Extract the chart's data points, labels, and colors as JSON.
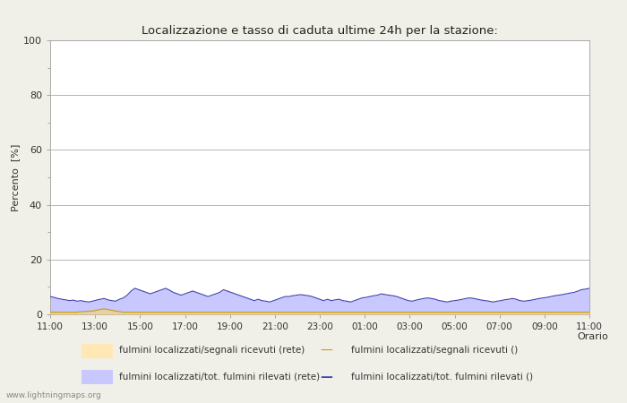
{
  "title": "Localizzazione e tasso di caduta ultime 24h per la stazione:",
  "ylabel": "Percento  [%]",
  "ylim": [
    0,
    100
  ],
  "yticks": [
    0,
    20,
    40,
    60,
    80,
    100
  ],
  "yticks_minor": [
    10,
    30,
    50,
    70,
    90
  ],
  "x_labels": [
    "11:00",
    "13:00",
    "15:00",
    "17:00",
    "19:00",
    "21:00",
    "23:00",
    "01:00",
    "03:00",
    "05:00",
    "07:00",
    "09:00",
    "11:00"
  ],
  "background_color": "#f0f0e8",
  "plot_bg_color": "#ffffff",
  "grid_color": "#aaaaaa",
  "fill_blue_color": "#c8c8ff",
  "fill_yellow_color": "#e8d0a0",
  "line_blue_color": "#4040b0",
  "line_yellow_color": "#c8a000",
  "watermark": "www.lightningmaps.org",
  "legend_row1_left_label": "fulmini localizzati/segnali ricevuti (rete)",
  "legend_row1_left_color": "#ffe8b4",
  "legend_row1_right_label": "fulmini localizzati/segnali ricevuti ()",
  "legend_row1_right_color": "#c8a000",
  "legend_row2_left_label": "fulmini localizzati/tot. fulmini rilevati (rete)",
  "legend_row2_left_color": "#c8c8ff",
  "legend_row2_right_label": "fulmini localizzati/tot. fulmini rilevati ()",
  "legend_row2_right_color": "#4040b0",
  "blue_fill_data": [
    6.5,
    6.2,
    5.8,
    5.5,
    5.3,
    5.0,
    5.2,
    4.8,
    5.0,
    4.7,
    4.5,
    4.8,
    5.2,
    5.5,
    5.8,
    5.3,
    5.0,
    4.8,
    5.5,
    6.0,
    7.0,
    8.5,
    9.5,
    9.0,
    8.5,
    8.0,
    7.5,
    8.0,
    8.5,
    9.0,
    9.5,
    8.8,
    8.0,
    7.5,
    7.0,
    7.5,
    8.0,
    8.5,
    8.0,
    7.5,
    7.0,
    6.5,
    7.0,
    7.5,
    8.0,
    9.0,
    8.5,
    8.0,
    7.5,
    7.0,
    6.5,
    6.0,
    5.5,
    5.0,
    5.5,
    5.0,
    4.8,
    4.5,
    5.0,
    5.5,
    6.0,
    6.5,
    6.5,
    6.8,
    7.0,
    7.2,
    7.0,
    6.8,
    6.5,
    6.0,
    5.5,
    5.0,
    5.5,
    5.0,
    5.3,
    5.5,
    5.0,
    4.8,
    4.5,
    5.0,
    5.5,
    6.0,
    6.2,
    6.5,
    6.8,
    7.0,
    7.5,
    7.2,
    7.0,
    6.8,
    6.5,
    6.0,
    5.5,
    5.0,
    4.8,
    5.2,
    5.5,
    5.8,
    6.0,
    5.8,
    5.5,
    5.0,
    4.8,
    4.5,
    4.8,
    5.0,
    5.2,
    5.5,
    5.8,
    6.0,
    5.8,
    5.5,
    5.2,
    5.0,
    4.8,
    4.5,
    4.8,
    5.0,
    5.3,
    5.5,
    5.8,
    5.5,
    5.0,
    4.8,
    5.0,
    5.2,
    5.5,
    5.8,
    6.0,
    6.2,
    6.5,
    6.8,
    7.0,
    7.2,
    7.5,
    7.8,
    8.0,
    8.5,
    9.0,
    9.2,
    9.5
  ],
  "yellow_fill_data": [
    0.8,
    0.8,
    0.8,
    0.8,
    0.8,
    0.8,
    0.8,
    0.8,
    1.0,
    1.0,
    1.2,
    1.2,
    1.5,
    1.8,
    2.0,
    1.8,
    1.5,
    1.2,
    1.0,
    0.8,
    0.8,
    0.8,
    0.8,
    0.8,
    0.8,
    0.8,
    0.8,
    0.8,
    0.8,
    0.8,
    0.8,
    0.8,
    0.8,
    0.8,
    0.8,
    0.8,
    0.8,
    0.8,
    0.8,
    0.8,
    0.8,
    0.8,
    0.8,
    0.8,
    0.8,
    0.8,
    0.8,
    0.8,
    0.8,
    0.8,
    0.8,
    0.8,
    0.8,
    0.8,
    0.8,
    0.8,
    0.8,
    0.8,
    0.8,
    0.8,
    0.8,
    0.8,
    0.8,
    0.8,
    0.8,
    0.8,
    0.8,
    0.8,
    0.8,
    0.8,
    0.8,
    0.8,
    0.8,
    0.8,
    0.8,
    0.8,
    0.8,
    0.8,
    0.8,
    0.8,
    0.8,
    0.8,
    0.8,
    0.8,
    0.8,
    0.8,
    0.8,
    0.8,
    0.8,
    0.8,
    0.8,
    0.8,
    0.8,
    0.8,
    0.8,
    0.8,
    0.8,
    0.8,
    0.8,
    0.8,
    0.8,
    0.8,
    0.8,
    0.8,
    0.8,
    0.8,
    0.8,
    0.8,
    0.8,
    0.8,
    0.8,
    0.8,
    0.8,
    0.8,
    0.8,
    0.8,
    0.8,
    0.8,
    0.8,
    0.8,
    0.8,
    0.8,
    0.8,
    0.8,
    0.8,
    0.8,
    0.8,
    0.8,
    0.8,
    0.8,
    0.8,
    0.8,
    0.8,
    0.8,
    0.8,
    0.8,
    0.8,
    0.8,
    0.8,
    0.8,
    0.8
  ]
}
